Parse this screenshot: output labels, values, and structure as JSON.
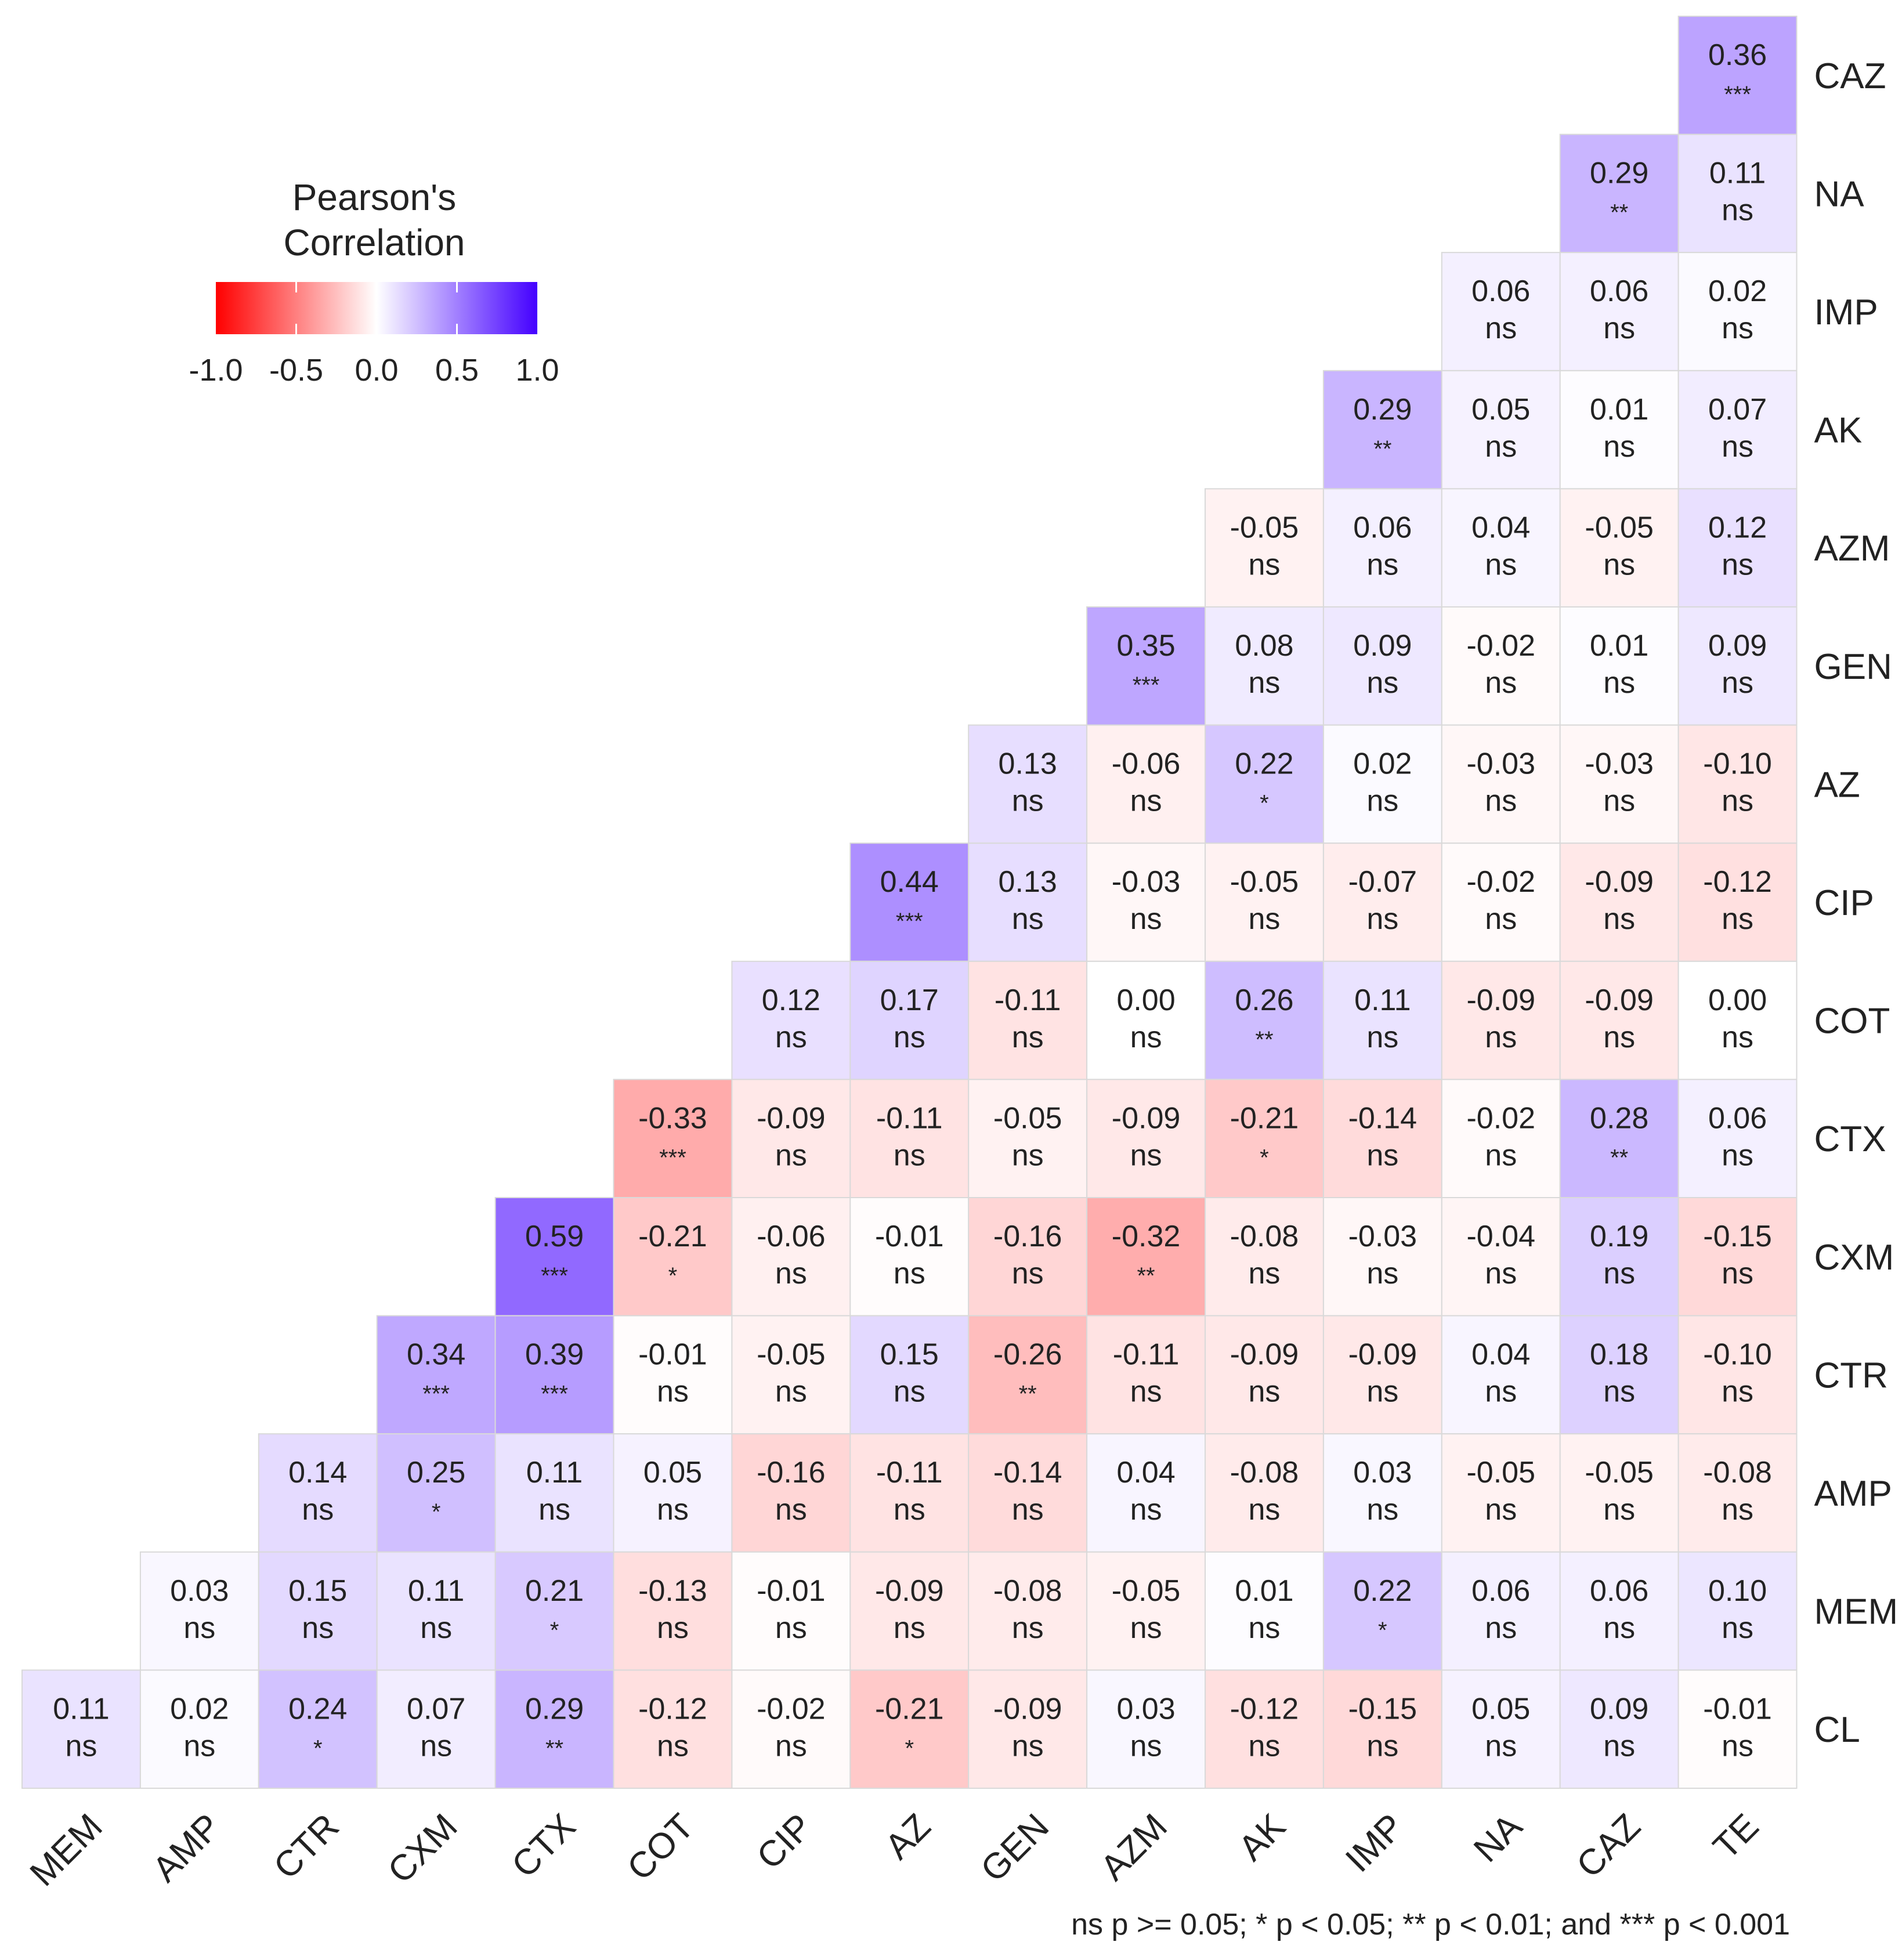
{
  "chart_data": {
    "type": "heatmap",
    "title": "",
    "rows": [
      "CAZ",
      "NA",
      "IMP",
      "AK",
      "AZM",
      "GEN",
      "AZ",
      "CIP",
      "COT",
      "CTX",
      "CXM",
      "CTR",
      "AMP",
      "MEM",
      "CL"
    ],
    "columns": [
      "MEM",
      "AMP",
      "CTR",
      "CXM",
      "CTX",
      "COT",
      "CIP",
      "AZ",
      "GEN",
      "AZM",
      "AK",
      "IMP",
      "NA",
      "CAZ",
      "TE"
    ],
    "values": [
      [
        null,
        null,
        null,
        null,
        null,
        null,
        null,
        null,
        null,
        null,
        null,
        null,
        null,
        null,
        0.36
      ],
      [
        null,
        null,
        null,
        null,
        null,
        null,
        null,
        null,
        null,
        null,
        null,
        null,
        null,
        0.29,
        0.11
      ],
      [
        null,
        null,
        null,
        null,
        null,
        null,
        null,
        null,
        null,
        null,
        null,
        null,
        0.06,
        0.06,
        0.02
      ],
      [
        null,
        null,
        null,
        null,
        null,
        null,
        null,
        null,
        null,
        null,
        null,
        0.29,
        0.05,
        0.01,
        0.07
      ],
      [
        null,
        null,
        null,
        null,
        null,
        null,
        null,
        null,
        null,
        null,
        -0.05,
        0.06,
        0.04,
        -0.05,
        0.12
      ],
      [
        null,
        null,
        null,
        null,
        null,
        null,
        null,
        null,
        null,
        0.35,
        0.08,
        0.09,
        -0.02,
        0.01,
        0.09
      ],
      [
        null,
        null,
        null,
        null,
        null,
        null,
        null,
        null,
        0.13,
        -0.06,
        0.22,
        0.02,
        -0.03,
        -0.03,
        -0.1
      ],
      [
        null,
        null,
        null,
        null,
        null,
        null,
        null,
        0.44,
        0.13,
        -0.03,
        -0.05,
        -0.07,
        -0.02,
        -0.09,
        -0.12
      ],
      [
        null,
        null,
        null,
        null,
        null,
        null,
        0.12,
        0.17,
        -0.11,
        0.0,
        0.26,
        0.11,
        -0.09,
        -0.09,
        0.0
      ],
      [
        null,
        null,
        null,
        null,
        null,
        -0.33,
        -0.09,
        -0.11,
        -0.05,
        -0.09,
        -0.21,
        -0.14,
        -0.02,
        0.28,
        0.06
      ],
      [
        null,
        null,
        null,
        null,
        0.59,
        -0.21,
        -0.06,
        -0.01,
        -0.16,
        -0.32,
        -0.08,
        -0.03,
        -0.04,
        0.19,
        -0.15
      ],
      [
        null,
        null,
        null,
        0.34,
        0.39,
        -0.01,
        -0.05,
        0.15,
        -0.26,
        -0.11,
        -0.09,
        -0.09,
        0.04,
        0.18,
        -0.1
      ],
      [
        null,
        null,
        0.14,
        0.25,
        0.11,
        0.05,
        -0.16,
        -0.11,
        -0.14,
        0.04,
        -0.08,
        0.03,
        -0.05,
        -0.05,
        -0.08
      ],
      [
        null,
        0.03,
        0.15,
        0.11,
        0.21,
        -0.13,
        -0.01,
        -0.09,
        -0.08,
        -0.05,
        0.01,
        0.22,
        0.06,
        0.06,
        0.1
      ],
      [
        0.11,
        0.02,
        0.24,
        0.07,
        0.29,
        -0.12,
        -0.02,
        -0.21,
        -0.09,
        0.03,
        -0.12,
        -0.15,
        0.05,
        0.09,
        -0.01
      ]
    ],
    "significance": [
      [
        null,
        null,
        null,
        null,
        null,
        null,
        null,
        null,
        null,
        null,
        null,
        null,
        null,
        null,
        "***"
      ],
      [
        null,
        null,
        null,
        null,
        null,
        null,
        null,
        null,
        null,
        null,
        null,
        null,
        null,
        "**",
        "ns"
      ],
      [
        null,
        null,
        null,
        null,
        null,
        null,
        null,
        null,
        null,
        null,
        null,
        null,
        "ns",
        "ns",
        "ns"
      ],
      [
        null,
        null,
        null,
        null,
        null,
        null,
        null,
        null,
        null,
        null,
        null,
        "**",
        "ns",
        "ns",
        "ns"
      ],
      [
        null,
        null,
        null,
        null,
        null,
        null,
        null,
        null,
        null,
        null,
        "ns",
        "ns",
        "ns",
        "ns",
        "ns"
      ],
      [
        null,
        null,
        null,
        null,
        null,
        null,
        null,
        null,
        null,
        "***",
        "ns",
        "ns",
        "ns",
        "ns",
        "ns"
      ],
      [
        null,
        null,
        null,
        null,
        null,
        null,
        null,
        null,
        "ns",
        "ns",
        "*",
        "ns",
        "ns",
        "ns",
        "ns"
      ],
      [
        null,
        null,
        null,
        null,
        null,
        null,
        null,
        "***",
        "ns",
        "ns",
        "ns",
        "ns",
        "ns",
        "ns",
        "ns"
      ],
      [
        null,
        null,
        null,
        null,
        null,
        null,
        "ns",
        "ns",
        "ns",
        "ns",
        "**",
        "ns",
        "ns",
        "ns",
        "ns"
      ],
      [
        null,
        null,
        null,
        null,
        null,
        "***",
        "ns",
        "ns",
        "ns",
        "ns",
        "*",
        "ns",
        "ns",
        "**",
        "ns"
      ],
      [
        null,
        null,
        null,
        null,
        "***",
        "*",
        "ns",
        "ns",
        "ns",
        "**",
        "ns",
        "ns",
        "ns",
        "ns",
        "ns"
      ],
      [
        null,
        null,
        null,
        "***",
        "***",
        "ns",
        "ns",
        "ns",
        "**",
        "ns",
        "ns",
        "ns",
        "ns",
        "ns",
        "ns"
      ],
      [
        null,
        null,
        "ns",
        "*",
        "ns",
        "ns",
        "ns",
        "ns",
        "ns",
        "ns",
        "ns",
        "ns",
        "ns",
        "ns",
        "ns"
      ],
      [
        null,
        "ns",
        "ns",
        "ns",
        "*",
        "ns",
        "ns",
        "ns",
        "ns",
        "ns",
        "ns",
        "*",
        "ns",
        "ns",
        "ns"
      ],
      [
        "ns",
        "ns",
        "*",
        "ns",
        "**",
        "ns",
        "ns",
        "*",
        "ns",
        "ns",
        "ns",
        "ns",
        "ns",
        "ns",
        "ns"
      ]
    ],
    "color_scale": {
      "range": [
        -1.0,
        1.0
      ],
      "low_color": "#ff0000",
      "mid_color": "#ffffff",
      "high_color": "#4400ff"
    },
    "legend": {
      "title_line1": "Pearson's",
      "title_line2": "Correlation",
      "ticks": [
        "-1.0",
        "-0.5",
        "0.0",
        "0.5",
        "1.0"
      ],
      "placement": "top-left"
    },
    "footnote": "ns p >= 0.05; * p < 0.05; ** p < 0.01; and *** p < 0.001"
  }
}
